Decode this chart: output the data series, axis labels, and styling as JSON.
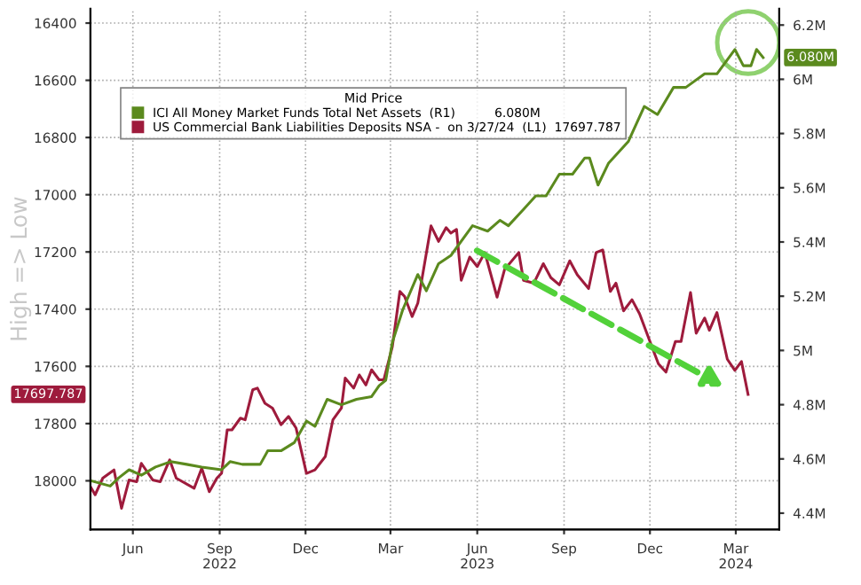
{
  "chart_data": {
    "type": "line",
    "ylabel": "High => Low",
    "legend_title": "Mid Price",
    "legend": "top left",
    "grid": true,
    "marker": "none",
    "line_style": "solid",
    "xlim": [
      "2022-05-01",
      "2024-04-30"
    ],
    "xticks": [
      {
        "value": "2022-06-15",
        "label": "Jun"
      },
      {
        "value": "2022-09-15",
        "label": "Sep\n2022"
      },
      {
        "value": "2022-12-15",
        "label": "Dec"
      },
      {
        "value": "2023-03-15",
        "label": "Mar"
      },
      {
        "value": "2023-06-15",
        "label": "Jun\n2023"
      },
      {
        "value": "2023-09-15",
        "label": "Sep"
      },
      {
        "value": "2023-12-15",
        "label": "Dec"
      },
      {
        "value": "2024-03-15",
        "label": "Mar\n2024"
      }
    ],
    "ylim": [
      18170,
      16350
    ],
    "yticks": [
      16400,
      16600,
      16800,
      17000,
      17200,
      17400,
      17600,
      17800,
      18000
    ],
    "y2lim": [
      4.34,
      6.26
    ],
    "y2ticks": [
      {
        "value": 4.4,
        "label": "4.4M"
      },
      {
        "value": 4.6,
        "label": "4.6M"
      },
      {
        "value": 4.8,
        "label": "4.8M"
      },
      {
        "value": 5.0,
        "label": "5M"
      },
      {
        "value": 5.2,
        "label": "5.2M"
      },
      {
        "value": 5.4,
        "label": "5.4M"
      },
      {
        "value": 5.6,
        "label": "5.6M"
      },
      {
        "value": 5.8,
        "label": "5.8M"
      },
      {
        "value": 6.0,
        "label": "6M"
      },
      {
        "value": 6.2,
        "label": "6.2M"
      }
    ],
    "annotations": [
      "6.080M",
      "17697.787"
    ],
    "series": [
      {
        "name": "ICI All Money Market Funds Total Net Assets  (R1)          6.080M",
        "color": "#5b8a1e",
        "axis": "y2",
        "x": [
          "2022-05-01",
          "2022-05-22",
          "2022-05-31",
          "2022-06-11",
          "2022-06-24",
          "2022-07-09",
          "2022-07-25",
          "2022-08-11",
          "2022-08-27",
          "2022-09-17",
          "2022-09-26",
          "2022-10-09",
          "2022-10-28",
          "2022-11-05",
          "2022-11-19",
          "2022-12-03",
          "2022-12-16",
          "2022-12-25",
          "2023-01-07",
          "2023-01-22",
          "2023-02-07",
          "2023-02-23",
          "2023-03-03",
          "2023-03-10",
          "2023-03-17",
          "2023-03-28",
          "2023-04-13",
          "2023-04-22",
          "2023-05-05",
          "2023-05-18",
          "2023-06-10",
          "2023-06-26",
          "2023-07-09",
          "2023-07-18",
          "2023-08-03",
          "2023-08-16",
          "2023-08-27",
          "2023-09-10",
          "2023-09-24",
          "2023-10-07",
          "2023-10-12",
          "2023-10-21",
          "2023-11-01",
          "2023-11-22",
          "2023-12-09",
          "2023-12-23",
          "2024-01-09",
          "2024-01-22",
          "2024-02-11",
          "2024-02-24",
          "2024-03-14",
          "2024-03-23",
          "2024-03-31",
          "2024-04-06",
          "2024-04-13"
        ],
        "values": [
          4.52,
          4.5,
          4.53,
          4.56,
          4.54,
          4.57,
          4.59,
          4.58,
          4.57,
          4.56,
          4.59,
          4.58,
          4.58,
          4.63,
          4.63,
          4.66,
          4.74,
          4.72,
          4.82,
          4.8,
          4.82,
          4.83,
          4.87,
          4.89,
          5.03,
          5.15,
          5.28,
          5.22,
          5.32,
          5.35,
          5.46,
          5.44,
          5.48,
          5.46,
          5.52,
          5.57,
          5.57,
          5.65,
          5.65,
          5.71,
          5.71,
          5.61,
          5.69,
          5.77,
          5.9,
          5.87,
          5.97,
          5.97,
          6.02,
          6.02,
          6.11,
          6.05,
          6.05,
          6.11,
          6.08
        ]
      },
      {
        "name": "US Commercial Bank Liabilities Deposits NSA -  on 3/27/24  (L1)  17697.787",
        "color": "#9e1b3c",
        "axis": "y",
        "x": [
          "2022-05-01",
          "2022-05-06",
          "2022-05-14",
          "2022-05-26",
          "2022-06-03",
          "2022-06-11",
          "2022-06-19",
          "2022-06-24",
          "2022-07-06",
          "2022-07-14",
          "2022-07-24",
          "2022-07-31",
          "2022-08-19",
          "2022-08-27",
          "2022-09-04",
          "2022-09-12",
          "2022-09-17",
          "2022-09-23",
          "2022-09-28",
          "2022-10-07",
          "2022-10-12",
          "2022-10-20",
          "2022-10-25",
          "2022-11-02",
          "2022-11-10",
          "2022-11-19",
          "2022-11-27",
          "2022-12-05",
          "2022-12-16",
          "2022-12-25",
          "2023-01-05",
          "2023-01-13",
          "2023-01-22",
          "2023-01-26",
          "2023-02-04",
          "2023-02-10",
          "2023-02-17",
          "2023-02-23",
          "2023-03-03",
          "2023-03-08",
          "2023-03-17",
          "2023-03-25",
          "2023-03-30",
          "2023-04-07",
          "2023-04-13",
          "2023-04-27",
          "2023-05-05",
          "2023-05-13",
          "2023-05-18",
          "2023-05-24",
          "2023-05-29",
          "2023-06-07",
          "2023-06-15",
          "2023-06-23",
          "2023-07-06",
          "2023-07-14",
          "2023-07-29",
          "2023-08-03",
          "2023-08-14",
          "2023-08-24",
          "2023-09-01",
          "2023-09-10",
          "2023-09-21",
          "2023-09-29",
          "2023-10-11",
          "2023-10-19",
          "2023-10-26",
          "2023-11-03",
          "2023-11-09",
          "2023-11-17",
          "2023-11-26",
          "2023-12-04",
          "2023-12-15",
          "2023-12-24",
          "2024-01-01",
          "2024-01-11",
          "2024-01-17",
          "2024-01-27",
          "2024-02-02",
          "2024-02-11",
          "2024-02-16",
          "2024-02-24",
          "2024-03-06",
          "2024-03-14",
          "2024-03-21",
          "2024-03-28"
        ],
        "values": [
          18020,
          18049,
          17991,
          17962,
          18096,
          17997,
          18003,
          17939,
          17997,
          18003,
          17927,
          17991,
          18026,
          17956,
          18038,
          17991,
          17974,
          17822,
          17822,
          17781,
          17787,
          17682,
          17676,
          17729,
          17746,
          17804,
          17775,
          17816,
          17974,
          17962,
          17915,
          17787,
          17746,
          17641,
          17676,
          17630,
          17665,
          17612,
          17647,
          17647,
          17531,
          17338,
          17356,
          17426,
          17379,
          17109,
          17163,
          17115,
          17134,
          17121,
          17299,
          17218,
          17251,
          17202,
          17358,
          17261,
          17202,
          17299,
          17309,
          17241,
          17290,
          17315,
          17231,
          17280,
          17328,
          17202,
          17193,
          17338,
          17309,
          17406,
          17367,
          17416,
          17513,
          17591,
          17620,
          17513,
          17513,
          17342,
          17484,
          17431,
          17474,
          17412,
          17575,
          17614,
          17583,
          17698
        ]
      }
    ]
  }
}
